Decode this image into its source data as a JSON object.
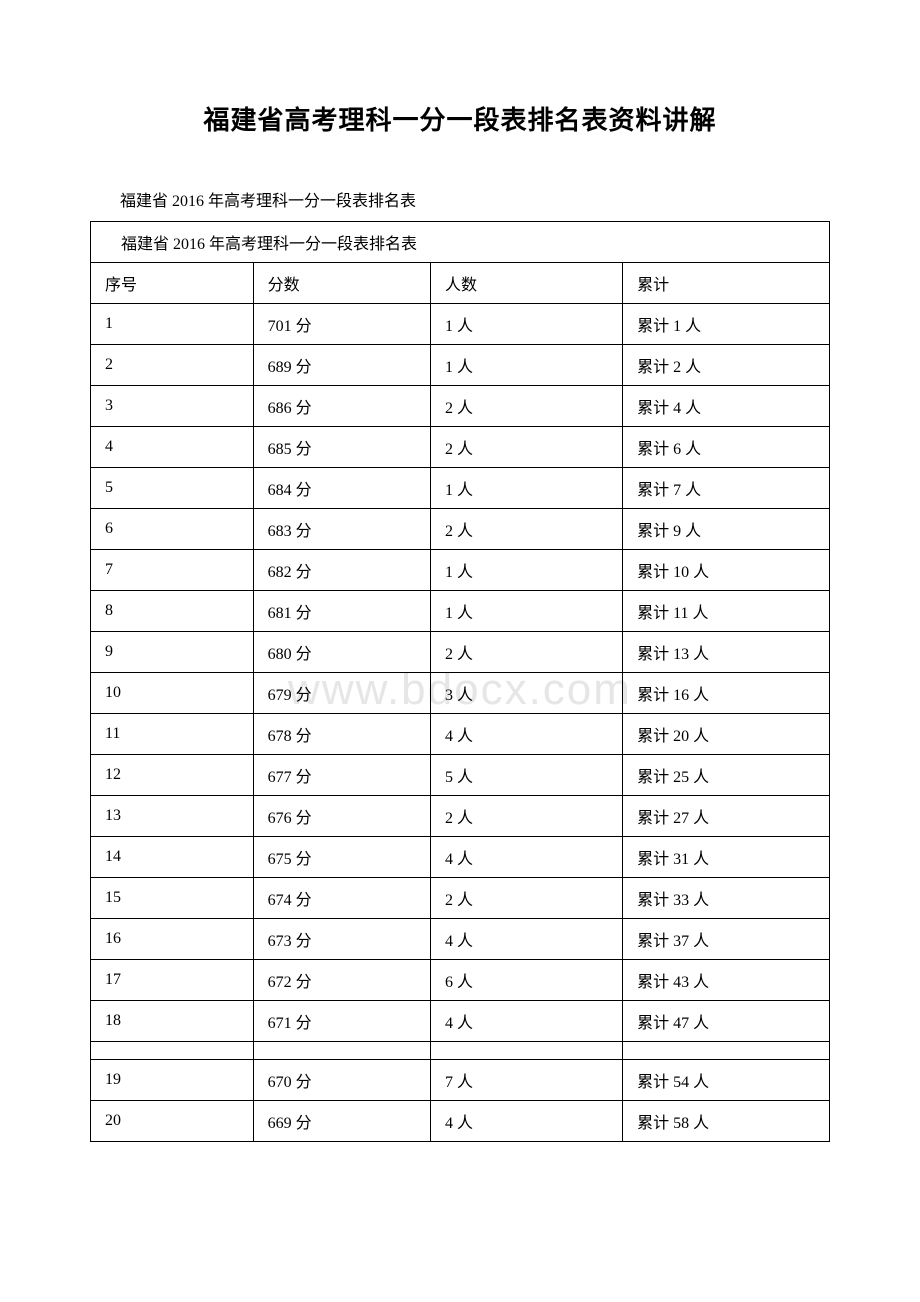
{
  "document": {
    "title": "福建省高考理科一分一段表排名表资料讲解",
    "subtitle": "福建省 2016 年高考理科一分一段表排名表",
    "watermark": "www.bdocx.com"
  },
  "table": {
    "caption": "福建省 2016 年高考理科一分一段表排名表",
    "headers": {
      "index": "序号",
      "score": "分数",
      "count": "人数",
      "cumulative": "累计"
    },
    "rows": [
      {
        "index": "1",
        "score": "701 分",
        "count": "1 人",
        "cumulative": "累计 1 人"
      },
      {
        "index": "2",
        "score": "689 分",
        "count": "1 人",
        "cumulative": "累计 2 人"
      },
      {
        "index": "3",
        "score": "686 分",
        "count": "2 人",
        "cumulative": "累计 4 人"
      },
      {
        "index": "4",
        "score": "685 分",
        "count": "2 人",
        "cumulative": "累计 6 人"
      },
      {
        "index": "5",
        "score": "684 分",
        "count": "1 人",
        "cumulative": "累计 7 人"
      },
      {
        "index": "6",
        "score": "683 分",
        "count": "2 人",
        "cumulative": "累计 9 人"
      },
      {
        "index": "7",
        "score": "682 分",
        "count": "1 人",
        "cumulative": "累计 10 人"
      },
      {
        "index": "8",
        "score": "681 分",
        "count": "1 人",
        "cumulative": "累计 11 人"
      },
      {
        "index": "9",
        "score": "680 分",
        "count": "2 人",
        "cumulative": "累计 13 人"
      },
      {
        "index": "10",
        "score": "679 分",
        "count": "3 人",
        "cumulative": "累计 16 人"
      },
      {
        "index": "11",
        "score": "678 分",
        "count": "4 人",
        "cumulative": "累计 20 人"
      },
      {
        "index": "12",
        "score": "677 分",
        "count": "5 人",
        "cumulative": "累计 25 人"
      },
      {
        "index": "13",
        "score": "676 分",
        "count": "2 人",
        "cumulative": "累计 27 人"
      },
      {
        "index": "14",
        "score": "675 分",
        "count": "4 人",
        "cumulative": "累计 31 人"
      },
      {
        "index": "15",
        "score": "674 分",
        "count": "2 人",
        "cumulative": "累计 33 人"
      },
      {
        "index": "16",
        "score": "673 分",
        "count": "4 人",
        "cumulative": "累计 37 人"
      },
      {
        "index": "17",
        "score": "672 分",
        "count": "6 人",
        "cumulative": "累计 43 人"
      },
      {
        "index": "18",
        "score": "671 分",
        "count": "4 人",
        "cumulative": "累计 47 人"
      },
      {
        "index": "19",
        "score": "670 分",
        "count": "7 人",
        "cumulative": "累计 54 人"
      },
      {
        "index": "20",
        "score": "669 分",
        "count": "4 人",
        "cumulative": "累计 58 人"
      }
    ]
  },
  "style": {
    "page_bg": "#ffffff",
    "border_color": "#000000",
    "watermark_color": "#e6e6e6",
    "title_fontsize": 26,
    "body_fontsize": 16,
    "watermark_fontsize": 44
  }
}
